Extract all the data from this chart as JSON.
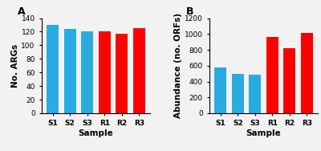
{
  "panel_A": {
    "categories": [
      "S1",
      "S2",
      "S3",
      "R1",
      "R2",
      "R3"
    ],
    "values": [
      130,
      124,
      121,
      121,
      117,
      125
    ],
    "colors": [
      "#29ABE2",
      "#29ABE2",
      "#29ABE2",
      "#FF0000",
      "#FF0000",
      "#FF0000"
    ],
    "ylabel": "No. ARGs",
    "xlabel": "Sample",
    "ylim": [
      0,
      140
    ],
    "yticks": [
      0,
      20,
      40,
      60,
      80,
      100,
      120,
      140
    ],
    "label": "A"
  },
  "panel_B": {
    "categories": [
      "S1",
      "S2",
      "S3",
      "R1",
      "R2",
      "R3"
    ],
    "values": [
      580,
      500,
      490,
      960,
      820,
      1010
    ],
    "colors": [
      "#29ABE2",
      "#29ABE2",
      "#29ABE2",
      "#FF0000",
      "#FF0000",
      "#FF0000"
    ],
    "ylabel": "Abundance (no. ORFs)",
    "xlabel": "Sample",
    "ylim": [
      0,
      1200
    ],
    "yticks": [
      0,
      200,
      400,
      600,
      800,
      1000,
      1200
    ],
    "label": "B"
  },
  "bar_width": 0.7,
  "tick_fontsize": 6.5,
  "label_fontsize": 7.5,
  "panel_label_fontsize": 9,
  "bg_color": "#F2F2F2"
}
